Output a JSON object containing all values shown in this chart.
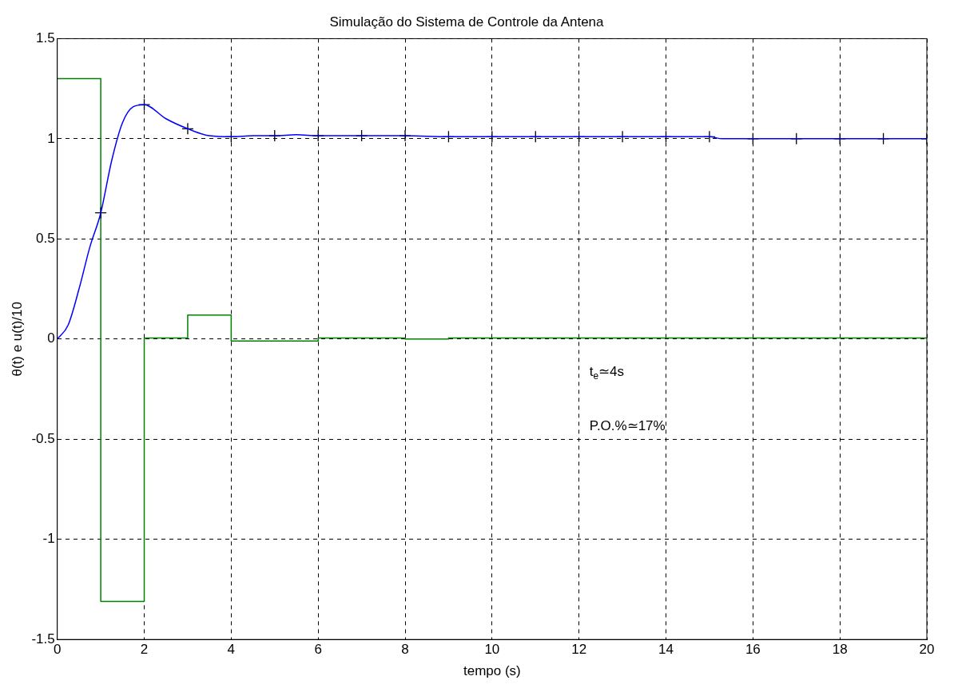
{
  "chart_data": {
    "type": "line",
    "title": "Simulação do Sistema de Controle da Antena",
    "xlabel": "tempo (s)",
    "ylabel": "θ(t) e u(t)/10",
    "xlim": [
      0,
      20
    ],
    "xticks": [
      0,
      2,
      4,
      6,
      8,
      10,
      12,
      14,
      16,
      18,
      20
    ],
    "ylim": [
      -1.5,
      1.5
    ],
    "yticks": [
      -1.5,
      -1,
      -0.5,
      0,
      0.5,
      1,
      1.5
    ],
    "grid": true,
    "legend": false,
    "series": [
      {
        "type": "line",
        "color": "#0000ff",
        "marker": "none",
        "x": [
          0,
          0.25,
          0.5,
          0.75,
          1,
          1.25,
          1.5,
          1.75,
          2,
          2.5,
          3,
          3.5,
          4,
          4.5,
          5,
          5.5,
          6,
          7,
          8,
          9,
          10,
          12,
          14,
          15,
          15.3,
          16,
          18,
          20
        ],
        "values": [
          0,
          0.07,
          0.25,
          0.46,
          0.63,
          0.89,
          1.08,
          1.16,
          1.17,
          1.1,
          1.05,
          1.015,
          1.01,
          1.015,
          1.015,
          1.02,
          1.015,
          1.015,
          1.015,
          1.01,
          1.01,
          1.01,
          1.01,
          1.01,
          1.0,
          1.0,
          1.0,
          1.0
        ]
      },
      {
        "type": "scatter",
        "color": "#000000",
        "marker": "cross",
        "x": [
          1,
          2,
          3,
          4,
          5,
          6,
          7,
          8,
          9,
          10,
          11,
          12,
          13,
          14,
          15,
          16,
          17,
          18,
          19,
          20
        ],
        "values": [
          0.63,
          1.17,
          1.05,
          1.01,
          1.015,
          1.015,
          1.015,
          1.015,
          1.01,
          1.01,
          1.01,
          1.01,
          1.01,
          1.01,
          1.01,
          1.0,
          1.0,
          1.0,
          1.0,
          1.0
        ]
      },
      {
        "type": "step",
        "color": "#008000",
        "marker": "none",
        "x": [
          0,
          1,
          2,
          3,
          4,
          6,
          8,
          9,
          20
        ],
        "values": [
          1.3,
          -1.31,
          0.005,
          0.12,
          -0.01,
          0.005,
          0,
          0.005,
          0.005
        ]
      }
    ],
    "annotations": [
      "t$_{e}$≃4s",
      "P.O.%≃17%"
    ]
  }
}
